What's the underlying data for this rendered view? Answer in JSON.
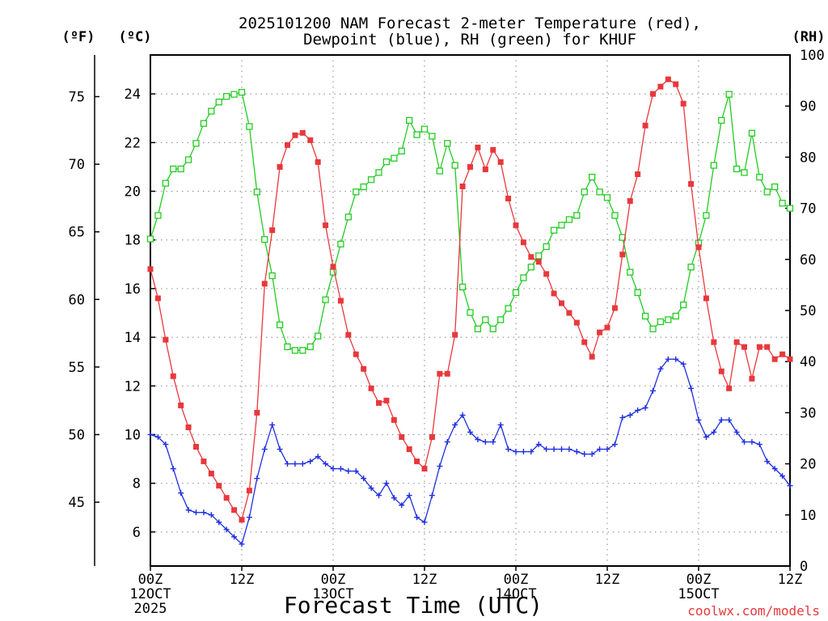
{
  "chart_data": {
    "type": "line",
    "title_line1": "2025101200 NAM Forecast 2-meter Temperature (red),",
    "title_line2": "Dewpoint (blue), RH (green) for KHUF",
    "units": {
      "fahrenheit": "(ºF)",
      "celsius": "(ºC)",
      "rh": "(RH)"
    },
    "xlabel": "Forecast Time (UTC)",
    "watermark": "coolwx.com/models",
    "x_range_hours": [
      0,
      84
    ],
    "y_celsius_range": [
      4.6,
      25.6
    ],
    "y_rh_range": [
      0,
      100
    ],
    "x_ticks": [
      {
        "hour": 0,
        "label": "00Z",
        "date": "12OCT",
        "year": "2025"
      },
      {
        "hour": 12,
        "label": "12Z",
        "date": "",
        "year": ""
      },
      {
        "hour": 24,
        "label": "00Z",
        "date": "13OCT",
        "year": ""
      },
      {
        "hour": 36,
        "label": "12Z",
        "date": "",
        "year": ""
      },
      {
        "hour": 48,
        "label": "00Z",
        "date": "14OCT",
        "year": ""
      },
      {
        "hour": 60,
        "label": "12Z",
        "date": "",
        "year": ""
      },
      {
        "hour": 72,
        "label": "00Z",
        "date": "15OCT",
        "year": ""
      },
      {
        "hour": 84,
        "label": "12Z",
        "date": "",
        "year": ""
      }
    ],
    "y_celsius_ticks": [
      6,
      8,
      10,
      12,
      14,
      16,
      18,
      20,
      22,
      24
    ],
    "y_fahrenheit_ticks": [
      45,
      50,
      55,
      60,
      65,
      70,
      75
    ],
    "y_rh_ticks": [
      0,
      10,
      20,
      30,
      40,
      50,
      60,
      70,
      80,
      90,
      100
    ],
    "series": [
      {
        "name": "2-meter Temperature",
        "units": "C",
        "color": "#e8383c",
        "marker": "filled-square",
        "values": [
          16.8,
          15.6,
          13.9,
          12.4,
          11.2,
          10.3,
          9.5,
          8.9,
          8.4,
          7.9,
          7.4,
          6.9,
          6.5,
          7.7,
          10.9,
          16.2,
          18.4,
          21.0,
          21.9,
          22.3,
          22.4,
          22.1,
          21.2,
          18.6,
          16.9,
          15.5,
          14.1,
          13.3,
          12.7,
          11.9,
          11.3,
          11.4,
          10.6,
          9.9,
          9.4,
          8.9,
          8.6,
          9.9,
          12.5,
          12.5,
          14.1,
          20.2,
          21.0,
          21.8,
          20.9,
          21.7,
          21.2,
          19.7,
          18.6,
          17.9,
          17.3,
          17.1,
          16.6,
          15.8,
          15.4,
          15.0,
          14.6,
          13.8,
          13.2,
          14.2,
          14.4,
          15.2,
          17.4,
          19.6,
          20.7,
          22.7,
          24.0,
          24.3,
          24.6,
          24.4,
          23.6,
          20.3,
          17.7,
          15.6,
          13.8,
          12.6,
          11.9,
          13.8,
          13.6,
          12.3,
          13.6,
          13.6,
          13.1,
          13.3,
          13.1
        ]
      },
      {
        "name": "Dewpoint",
        "units": "C",
        "color": "#2030e0",
        "marker": "plus",
        "values": [
          10.0,
          9.9,
          9.6,
          8.6,
          7.6,
          6.9,
          6.8,
          6.8,
          6.7,
          6.4,
          6.1,
          5.8,
          5.5,
          6.6,
          8.2,
          9.4,
          10.4,
          9.4,
          8.8,
          8.8,
          8.8,
          8.9,
          9.1,
          8.8,
          8.6,
          8.6,
          8.5,
          8.5,
          8.2,
          7.8,
          7.5,
          8.0,
          7.4,
          7.1,
          7.5,
          6.6,
          6.4,
          7.5,
          8.7,
          9.7,
          10.4,
          10.8,
          10.1,
          9.8,
          9.7,
          9.7,
          10.4,
          9.4,
          9.3,
          9.3,
          9.3,
          9.6,
          9.4,
          9.4,
          9.4,
          9.4,
          9.3,
          9.2,
          9.2,
          9.4,
          9.4,
          9.6,
          10.7,
          10.8,
          11.0,
          11.1,
          11.8,
          12.7,
          13.1,
          13.1,
          12.9,
          11.9,
          10.6,
          9.9,
          10.1,
          10.6,
          10.6,
          10.1,
          9.7,
          9.7,
          9.6,
          8.9,
          8.6,
          8.3,
          7.9
        ]
      },
      {
        "name": "RH",
        "units": "%",
        "color": "#22cc22",
        "marker": "open-square",
        "values": [
          64.0,
          68.6,
          74.9,
          77.7,
          77.7,
          79.5,
          82.7,
          86.6,
          89.0,
          90.8,
          91.9,
          92.3,
          92.7,
          86.0,
          73.2,
          63.9,
          56.8,
          47.2,
          42.9,
          42.2,
          42.2,
          42.9,
          45.0,
          52.1,
          57.5,
          63.0,
          68.3,
          73.2,
          74.2,
          75.6,
          77.0,
          79.1,
          79.8,
          81.2,
          87.2,
          84.4,
          85.5,
          84.1,
          77.3,
          82.7,
          78.4,
          54.6,
          49.6,
          46.4,
          48.2,
          46.4,
          48.2,
          50.4,
          53.5,
          56.4,
          58.5,
          60.7,
          62.5,
          65.7,
          66.7,
          67.8,
          68.6,
          73.2,
          76.1,
          73.2,
          72.1,
          68.6,
          64.3,
          57.5,
          53.5,
          48.9,
          46.4,
          47.8,
          48.2,
          48.9,
          51.1,
          58.5,
          63.2,
          68.6,
          78.4,
          87.2,
          92.3,
          77.7,
          77.0,
          84.7,
          76.1,
          73.2,
          74.2,
          71.0,
          70.0
        ]
      }
    ]
  }
}
